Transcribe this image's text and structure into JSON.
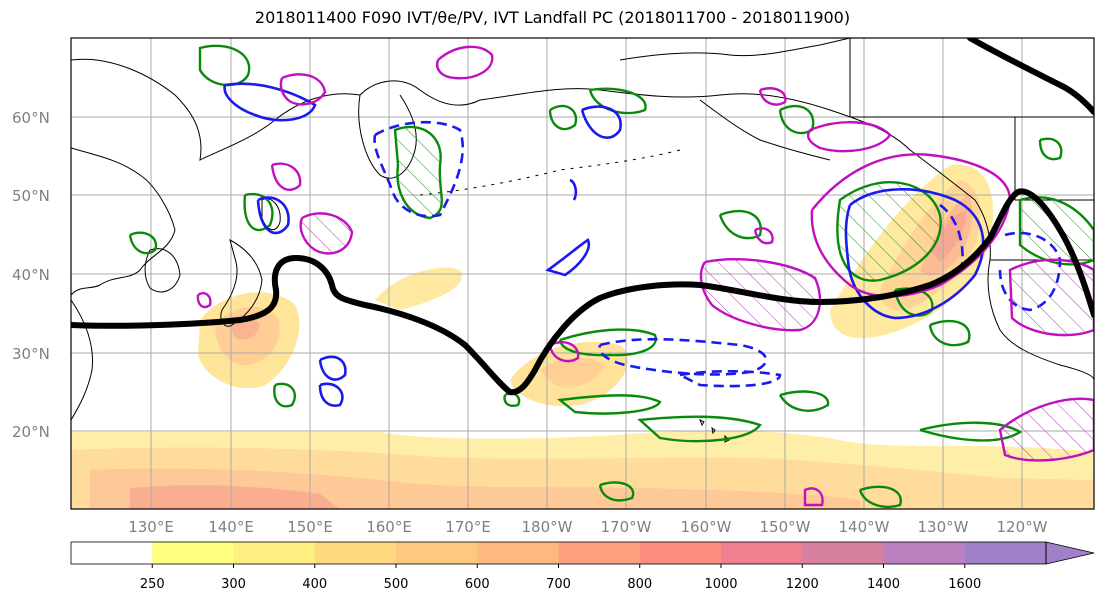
{
  "title": "2018011400 F090 IVT/θe/PV, IVT Landfall PC (2018011700 - 2018011900)",
  "map": {
    "lat_labels": [
      "60°N",
      "50°N",
      "40°N",
      "30°N",
      "20°N"
    ],
    "lon_labels": [
      "130°E",
      "140°E",
      "150°E",
      "160°E",
      "170°E",
      "180°W",
      "170°W",
      "160°W",
      "150°W",
      "140°W",
      "130°W",
      "120°W"
    ],
    "ivt_levels": [
      250,
      300,
      400,
      500,
      600,
      700,
      800,
      1000,
      1200,
      1400,
      1600
    ]
  },
  "colorbar": {
    "labels": [
      "250",
      "300",
      "400",
      "500",
      "600",
      "700",
      "800",
      "1000",
      "1200",
      "1400",
      "1600"
    ],
    "colors": [
      "#ffffff",
      "#ffff80",
      "#ffee80",
      "#ffd980",
      "#ffc880",
      "#ffb880",
      "#ffa080",
      "#ff8c80",
      "#f08090",
      "#d880a0",
      "#bb80c0",
      "#a080c8"
    ]
  }
}
